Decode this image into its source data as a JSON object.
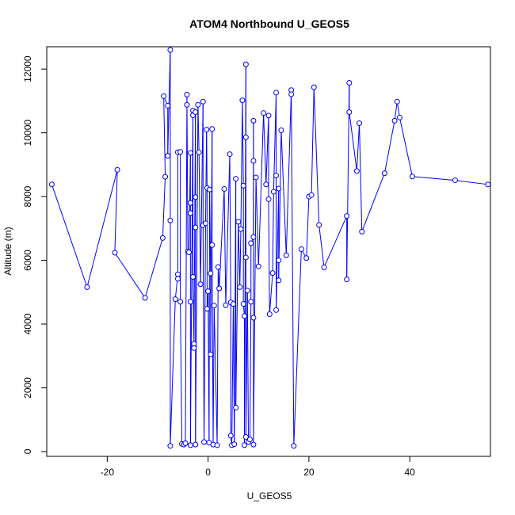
{
  "chart_data": {
    "type": "line",
    "title": "ATOM4 Northbound U_GEOS5",
    "xlabel": "U_GEOS5",
    "ylabel": "Altitude (m)",
    "xlim": [
      -32,
      56
    ],
    "ylim": [
      -150,
      12700
    ],
    "x_ticks": [
      -20,
      0,
      20,
      40
    ],
    "y_ticks": [
      0,
      2000,
      4000,
      6000,
      8000,
      10000,
      12000
    ],
    "grid": false,
    "legend": "none",
    "series_color": "#0000ff",
    "points": [
      [
        -31,
        8380
      ],
      [
        -24,
        5160
      ],
      [
        -18,
        8840
      ],
      [
        -18.5,
        6240
      ],
      [
        -12.5,
        4820
      ],
      [
        -9,
        6700
      ],
      [
        -8.5,
        8620
      ],
      [
        -8.8,
        11150
      ],
      [
        -8,
        10850
      ],
      [
        -8,
        9280
      ],
      [
        -7.5,
        12600
      ],
      [
        -7.5,
        7250
      ],
      [
        -7.5,
        180
      ],
      [
        -6.5,
        4780
      ],
      [
        -6,
        5560
      ],
      [
        -6,
        5420
      ],
      [
        -6,
        9390
      ],
      [
        -5.5,
        9400
      ],
      [
        -5.5,
        4700
      ],
      [
        -5.2,
        240
      ],
      [
        -4.8,
        220
      ],
      [
        -4.5,
        260
      ],
      [
        -4.2,
        10880
      ],
      [
        -4.2,
        11200
      ],
      [
        -4,
        6280
      ],
      [
        -3.8,
        6250
      ],
      [
        -3.5,
        9370
      ],
      [
        -3.5,
        7800
      ],
      [
        -3.5,
        7480
      ],
      [
        -3.5,
        4700
      ],
      [
        -3.5,
        200
      ],
      [
        -3,
        10700
      ],
      [
        -3,
        10550
      ],
      [
        -3,
        5480
      ],
      [
        -2.8,
        3380
      ],
      [
        -2.8,
        3250
      ],
      [
        -2.5,
        10650
      ],
      [
        -2.5,
        7980
      ],
      [
        -2.5,
        7030
      ],
      [
        -2.5,
        220
      ],
      [
        -2,
        10880
      ],
      [
        -1.8,
        9390
      ],
      [
        -1.5,
        5250
      ],
      [
        -1,
        10980
      ],
      [
        -1,
        7100
      ],
      [
        -0.8,
        300
      ],
      [
        -0.5,
        7160
      ],
      [
        -0.3,
        10100
      ],
      [
        -0.2,
        8270
      ],
      [
        -0.2,
        4480
      ],
      [
        0,
        5030
      ],
      [
        0.2,
        280
      ],
      [
        0.3,
        8220
      ],
      [
        0.5,
        5590
      ],
      [
        0.5,
        3050
      ],
      [
        0.8,
        10120
      ],
      [
        0.8,
        6480
      ],
      [
        1,
        220
      ],
      [
        1.2,
        4580
      ],
      [
        1.8,
        200
      ],
      [
        2,
        5790
      ],
      [
        2.2,
        5120
      ],
      [
        3.2,
        8240
      ],
      [
        3.5,
        4590
      ],
      [
        4.3,
        9330
      ],
      [
        4.5,
        4680
      ],
      [
        4.5,
        500
      ],
      [
        4.7,
        200
      ],
      [
        5,
        4630
      ],
      [
        5.2,
        230
      ],
      [
        5.5,
        8560
      ],
      [
        5.5,
        1380
      ],
      [
        6,
        7210
      ],
      [
        6.3,
        5160
      ],
      [
        6.5,
        6980
      ],
      [
        6.8,
        11020
      ],
      [
        7,
        8340
      ],
      [
        7,
        4630
      ],
      [
        7.2,
        4250
      ],
      [
        7.2,
        200
      ],
      [
        7.5,
        12150
      ],
      [
        7.5,
        9860
      ],
      [
        7.5,
        6090
      ],
      [
        7.5,
        460
      ],
      [
        7.8,
        5050
      ],
      [
        8,
        300
      ],
      [
        8.3,
        380
      ],
      [
        8.5,
        4700
      ],
      [
        8.5,
        6540
      ],
      [
        9,
        6730
      ],
      [
        9,
        10380
      ],
      [
        9,
        9120
      ],
      [
        9,
        4200
      ],
      [
        9,
        220
      ],
      [
        9.5,
        8600
      ],
      [
        10,
        5810
      ],
      [
        11,
        10620
      ],
      [
        11.5,
        8380
      ],
      [
        12,
        10540
      ],
      [
        12,
        7920
      ],
      [
        12.2,
        4310
      ],
      [
        12.8,
        5600
      ],
      [
        13,
        8150
      ],
      [
        13.5,
        11260
      ],
      [
        13.5,
        8660
      ],
      [
        13.5,
        4440
      ],
      [
        14,
        8250
      ],
      [
        14,
        6000
      ],
      [
        14,
        5370
      ],
      [
        14.5,
        10080
      ],
      [
        15.5,
        6160
      ],
      [
        16.5,
        11340
      ],
      [
        16.5,
        11210
      ],
      [
        17,
        180
      ],
      [
        18.5,
        6350
      ],
      [
        19.5,
        6070
      ],
      [
        20,
        8000
      ],
      [
        20.5,
        8050
      ],
      [
        21,
        11430
      ],
      [
        22,
        7110
      ],
      [
        23,
        5780
      ],
      [
        27.5,
        7390
      ],
      [
        27.5,
        5400
      ],
      [
        28,
        11570
      ],
      [
        28,
        10650
      ],
      [
        29.5,
        8800
      ],
      [
        30,
        10300
      ],
      [
        30.5,
        6900
      ],
      [
        35,
        8730
      ],
      [
        37,
        10380
      ],
      [
        37.5,
        10980
      ],
      [
        38,
        10480
      ],
      [
        40.5,
        8630
      ],
      [
        49,
        8510
      ],
      [
        55.5,
        8380
      ]
    ]
  }
}
